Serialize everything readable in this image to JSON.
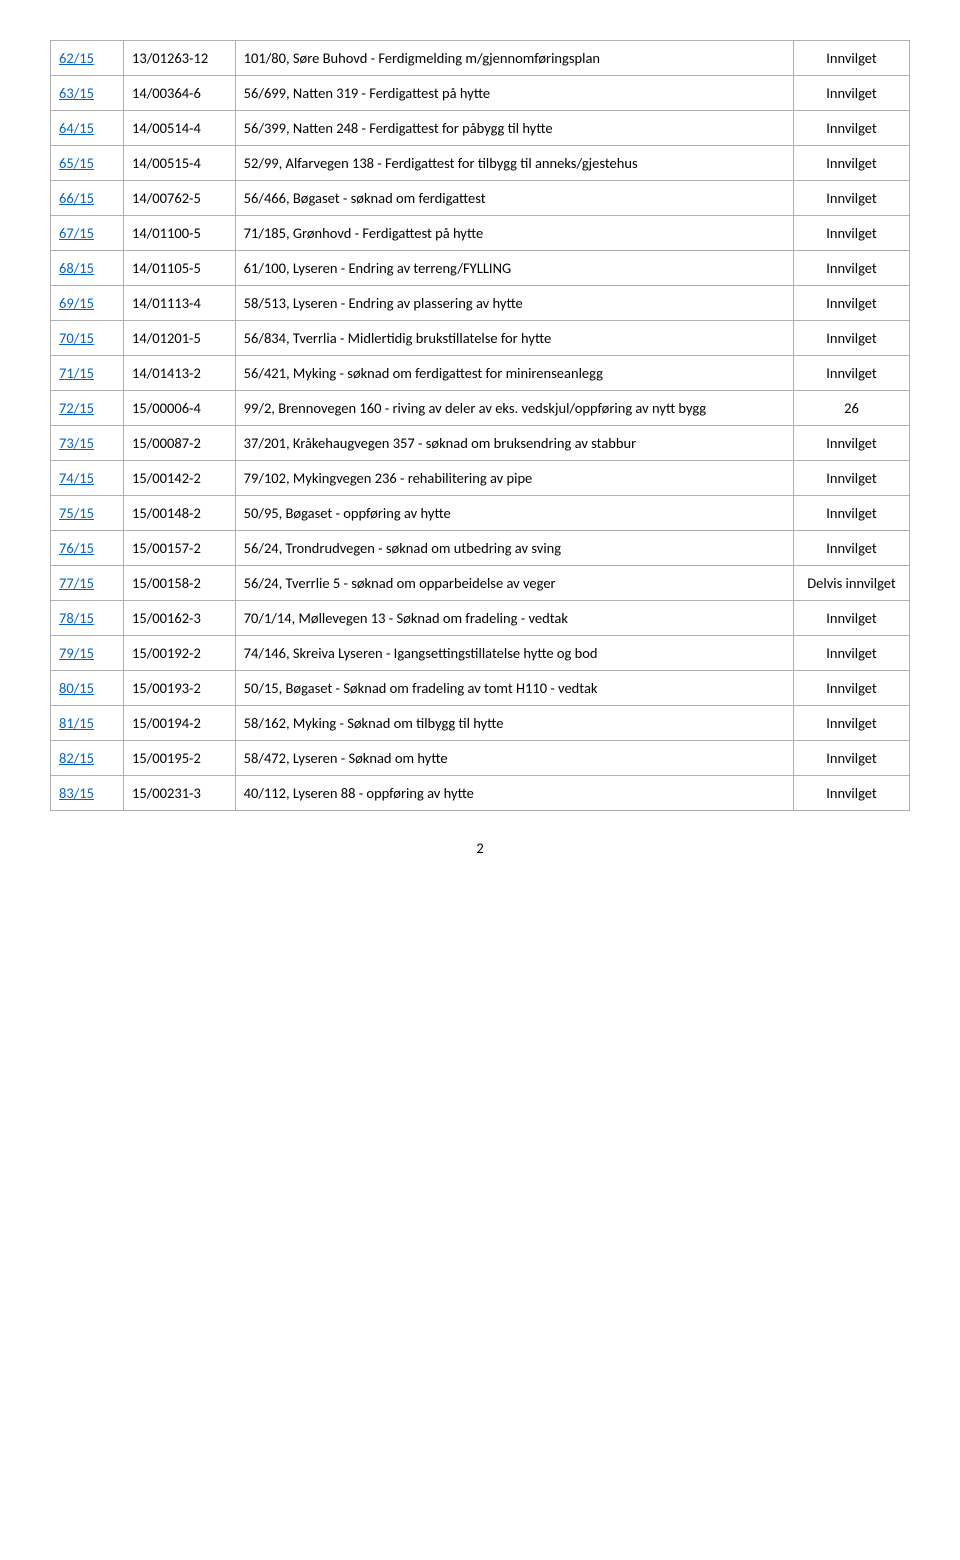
{
  "page_number": "2",
  "status": {
    "innvilget": "Innvilget",
    "delvis": "Delvis innvilget",
    "n26": "26"
  },
  "rows": [
    {
      "id": "62/15",
      "ref": "13/01263-12",
      "desc": "101/80, Søre Buhovd - Ferdigmelding m/gjennomføringsplan",
      "out": "Innvilget"
    },
    {
      "id": "63/15",
      "ref": "14/00364-6",
      "desc": "56/699, Natten 319 - Ferdigattest på hytte",
      "out": "Innvilget"
    },
    {
      "id": "64/15",
      "ref": "14/00514-4",
      "desc": "56/399, Natten 248 - Ferdigattest for påbygg til hytte",
      "out": "Innvilget"
    },
    {
      "id": "65/15",
      "ref": "14/00515-4",
      "desc": "52/99, Alfarvegen 138 - Ferdigattest for tilbygg til anneks/gjestehus",
      "out": "Innvilget"
    },
    {
      "id": "66/15",
      "ref": "14/00762-5",
      "desc": "56/466, Bøgaset - søknad om ferdigattest",
      "out": "Innvilget"
    },
    {
      "id": "67/15",
      "ref": "14/01100-5",
      "desc": "71/185, Grønhovd - Ferdigattest på hytte",
      "out": "Innvilget"
    },
    {
      "id": "68/15",
      "ref": "14/01105-5",
      "desc": "61/100, Lyseren - Endring av terreng/FYLLING",
      "out": "Innvilget"
    },
    {
      "id": "69/15",
      "ref": "14/01113-4",
      "desc": "58/513, Lyseren - Endring av plassering av hytte",
      "out": "Innvilget"
    },
    {
      "id": "70/15",
      "ref": "14/01201-5",
      "desc": "56/834, Tverrlia - Midlertidig brukstillatelse for hytte",
      "out": "Innvilget"
    },
    {
      "id": "71/15",
      "ref": "14/01413-2",
      "desc": "56/421, Myking - søknad om ferdigattest for minirenseanlegg",
      "out": "Innvilget"
    },
    {
      "id": "72/15",
      "ref": "15/00006-4",
      "desc": "99/2, Brennovegen 160 - riving av deler av eks. vedskjul/oppføring av nytt bygg",
      "out": "26"
    },
    {
      "id": "73/15",
      "ref": "15/00087-2",
      "desc": "37/201, Kråkehaugvegen 357 - søknad om bruksendring av stabbur",
      "out": "Innvilget"
    },
    {
      "id": "74/15",
      "ref": "15/00142-2",
      "desc": "79/102, Mykingvegen 236 - rehabilitering av pipe",
      "out": "Innvilget"
    },
    {
      "id": "75/15",
      "ref": "15/00148-2",
      "desc": "50/95, Bøgaset - oppføring av hytte",
      "out": "Innvilget"
    },
    {
      "id": "76/15",
      "ref": "15/00157-2",
      "desc": "56/24, Trondrudvegen - søknad om utbedring av sving",
      "out": "Innvilget"
    },
    {
      "id": "77/15",
      "ref": "15/00158-2",
      "desc": "56/24, Tverrlie 5 - søknad om opparbeidelse av veger",
      "out": "Delvis innvilget"
    },
    {
      "id": "78/15",
      "ref": "15/00162-3",
      "desc": "70/1/14, Møllevegen 13 - Søknad om fradeling - vedtak",
      "out": "Innvilget"
    },
    {
      "id": "79/15",
      "ref": "15/00192-2",
      "desc": "74/146, Skreiva Lyseren - Igangsettingstillatelse hytte og bod",
      "out": "Innvilget"
    },
    {
      "id": "80/15",
      "ref": "15/00193-2",
      "desc": "50/15, Bøgaset - Søknad om fradeling av tomt H110 - vedtak",
      "out": "Innvilget"
    },
    {
      "id": "81/15",
      "ref": "15/00194-2",
      "desc": "58/162, Myking - Søknad om tilbygg til hytte",
      "out": "Innvilget"
    },
    {
      "id": "82/15",
      "ref": "15/00195-2",
      "desc": "58/472, Lyseren - Søknad om hytte",
      "out": "Innvilget"
    },
    {
      "id": "83/15",
      "ref": "15/00231-3",
      "desc": "40/112, Lyseren 88 - oppføring av hytte",
      "out": "Innvilget"
    }
  ]
}
